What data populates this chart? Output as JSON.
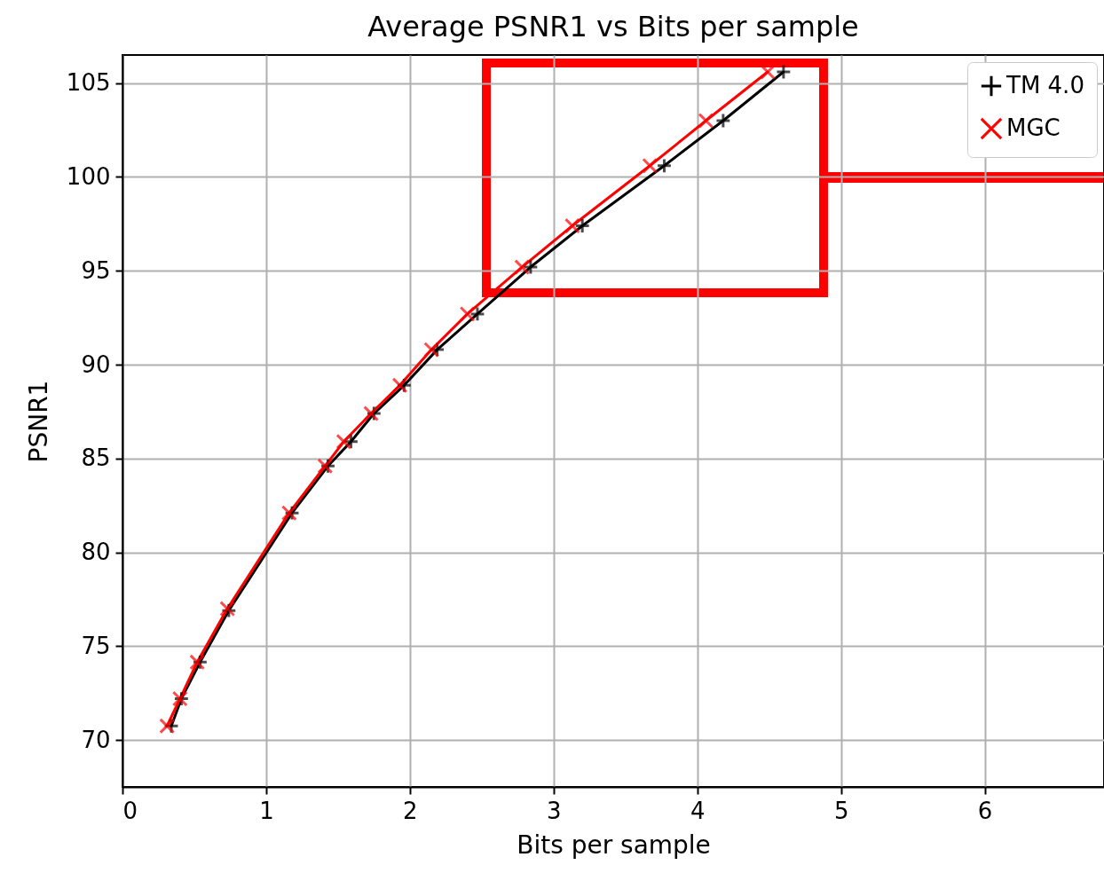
{
  "chart_data": {
    "type": "line",
    "title": "Average PSNR1 vs Bits per sample",
    "xlabel": "Bits per sample",
    "ylabel": "PSNR1",
    "series": [
      {
        "name": "TM 4.0",
        "color": "#000000",
        "marker": "plus",
        "x": [
          0.34,
          0.41,
          0.54,
          0.74,
          1.18,
          1.43,
          1.59,
          1.75,
          1.96,
          2.19,
          2.47,
          2.84,
          3.2,
          3.77,
          4.18,
          4.6
        ],
        "values": [
          70.75,
          72.2,
          74.15,
          76.9,
          82.1,
          84.6,
          85.9,
          87.4,
          88.9,
          90.8,
          92.7,
          95.2,
          97.4,
          100.6,
          103.0,
          105.6
        ]
      },
      {
        "name": "MGC",
        "color": "#ff0000",
        "marker": "cross",
        "x": [
          0.31,
          0.4,
          0.52,
          0.73,
          1.16,
          1.41,
          1.54,
          1.73,
          1.93,
          2.15,
          2.4,
          2.78,
          3.13,
          3.67,
          4.06,
          4.49
        ],
        "values": [
          70.75,
          72.2,
          74.15,
          77.0,
          82.1,
          84.6,
          85.9,
          87.4,
          88.9,
          90.8,
          92.7,
          95.2,
          97.4,
          100.6,
          103.0,
          105.6
        ]
      }
    ],
    "xlim": [
      0,
      6.83
    ],
    "xticks": [
      0,
      1,
      2,
      3,
      4,
      5,
      6
    ],
    "ylim": [
      67.5,
      106.5
    ],
    "yticks": [
      70,
      75,
      80,
      85,
      90,
      95,
      100,
      105
    ],
    "grid": true,
    "legend": "top right",
    "line_style": "solid"
  }
}
